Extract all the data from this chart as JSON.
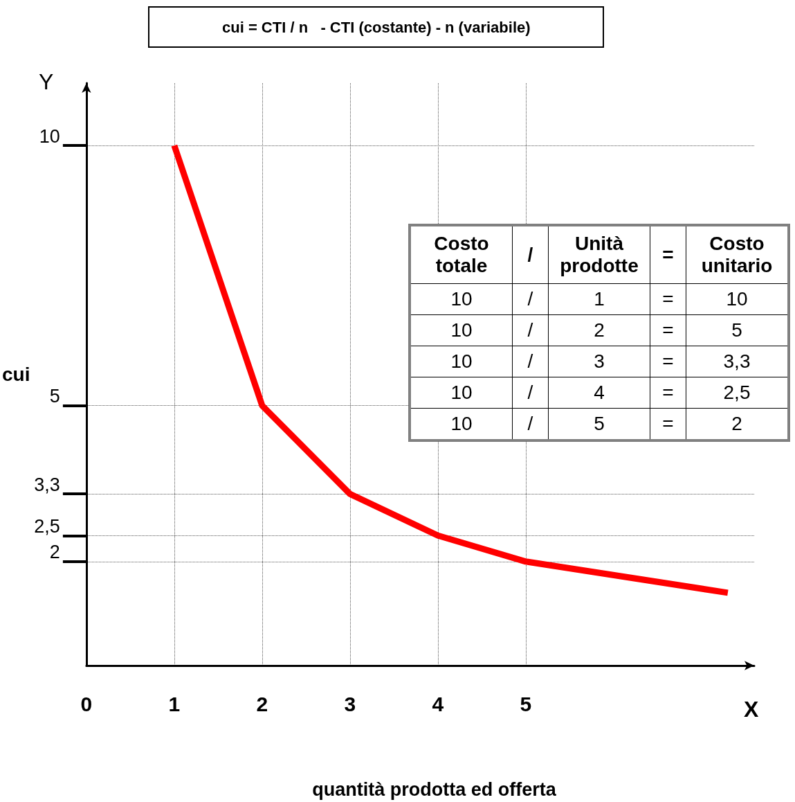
{
  "chart_data": {
    "type": "line",
    "title": "cui = CTI / n   - CTI (costante) - n (variabile)",
    "xlabel": "quantità prodotta ed offerta",
    "ylabel": "cui",
    "x": [
      1,
      2,
      3,
      4,
      5,
      7.3
    ],
    "series": [
      {
        "color": "#ff0000",
        "values": [
          10,
          5,
          3.3,
          2.5,
          2,
          1.4
        ]
      }
    ],
    "value_labels": [
      "10",
      "5",
      "3,3",
      "2,5",
      "2",
      null
    ],
    "xlim": [
      0,
      7.6
    ],
    "xticks": [
      {
        "value": 0,
        "label": "0"
      },
      1,
      2,
      3,
      4,
      5
    ],
    "ylim": [
      0,
      11.2
    ],
    "yticks": [
      {
        "value": 2,
        "label": "2"
      },
      {
        "value": 2.5,
        "label": "2,5"
      },
      {
        "value": 3.3,
        "label": "3,3"
      },
      {
        "value": 5,
        "label": "5"
      },
      {
        "value": 10,
        "label": "10"
      }
    ],
    "grid": true,
    "marker": "none",
    "line_style": "solid",
    "annotations": [
      "X",
      "Y",
      "Costo totale",
      "/",
      "Unità prodotte",
      "=",
      "Costo unitario",
      "10",
      "1",
      "2",
      "3",
      "4",
      "5"
    ]
  }
}
